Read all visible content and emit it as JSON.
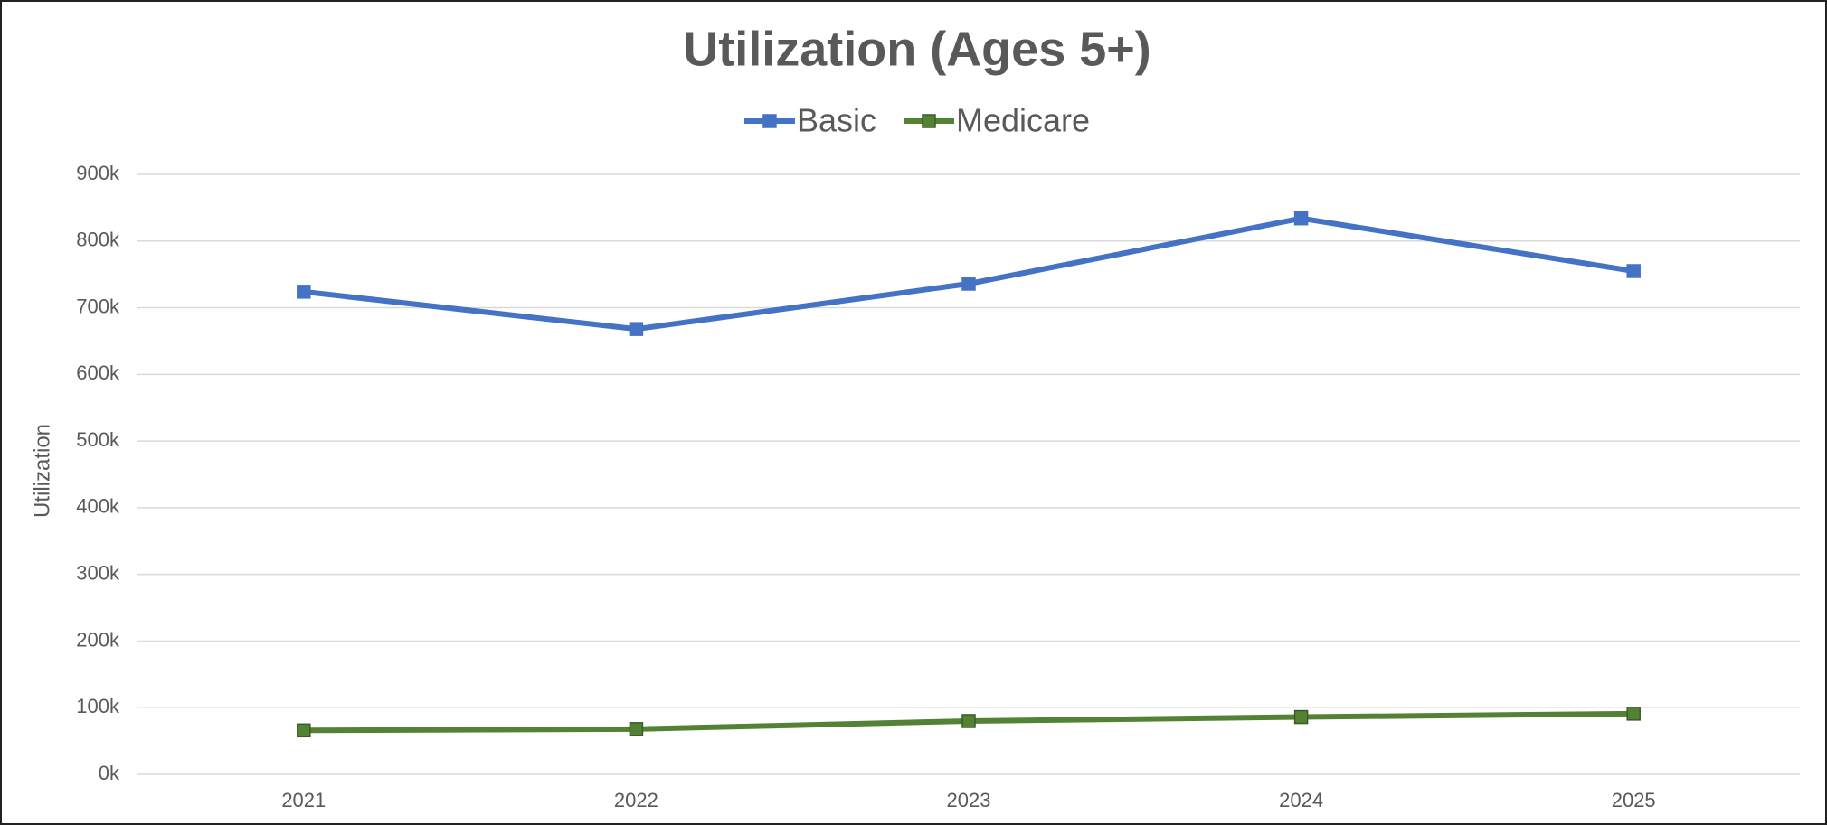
{
  "chart_data": {
    "type": "line",
    "title": "Utilization (Ages 5+)",
    "ylabel": "Utilization",
    "categories": [
      "2021",
      "2022",
      "2023",
      "2024",
      "2025"
    ],
    "series": [
      {
        "name": "Basic",
        "color": "#4472c4",
        "values": [
          724000,
          668000,
          736000,
          834000,
          755000
        ]
      },
      {
        "name": "Medicare",
        "color": "#548235",
        "values": [
          66000,
          68000,
          80000,
          86000,
          91000
        ]
      }
    ],
    "ylim": [
      0,
      900000
    ],
    "yticks": [
      {
        "value": 0,
        "label": "0k"
      },
      {
        "value": 100000,
        "label": "100k"
      },
      {
        "value": 200000,
        "label": "200k"
      },
      {
        "value": 300000,
        "label": "300k"
      },
      {
        "value": 400000,
        "label": "400k"
      },
      {
        "value": 500000,
        "label": "500k"
      },
      {
        "value": 600000,
        "label": "600k"
      },
      {
        "value": 700000,
        "label": "700k"
      },
      {
        "value": 800000,
        "label": "800k"
      },
      {
        "value": 900000,
        "label": "900k"
      }
    ],
    "grid": true,
    "legend": "top"
  }
}
